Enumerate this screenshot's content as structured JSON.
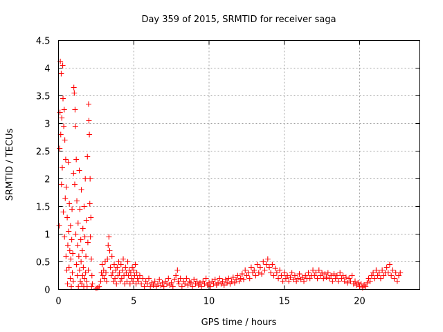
{
  "chart_data": {
    "type": "scatter",
    "title": "Day 359 of 2015, SRMTID for receiver saga",
    "xlabel": "GPS time / hours",
    "ylabel": "SRMTID / TECUs",
    "xlim": [
      0,
      24
    ],
    "ylim": [
      0,
      4.5
    ],
    "xticks": [
      0,
      5,
      10,
      15,
      20
    ],
    "xtick_labels": [
      "0",
      "5",
      "10",
      "15",
      "20"
    ],
    "yticks": [
      0,
      0.5,
      1,
      1.5,
      2,
      2.5,
      3,
      3.5,
      4,
      4.5
    ],
    "ytick_labels": [
      "0",
      "0.5",
      "1",
      "1.5",
      "2",
      "2.5",
      "3",
      "3.5",
      "4",
      "4.5"
    ],
    "grid": true,
    "marker": "+",
    "color": "#ff0000",
    "series": [
      {
        "name": "SRMTID",
        "points": [
          [
            0.05,
            1.15
          ],
          [
            0.08,
            2.55
          ],
          [
            0.1,
            3.2
          ],
          [
            0.12,
            4.12
          ],
          [
            0.15,
            2.8
          ],
          [
            0.18,
            3.9
          ],
          [
            0.2,
            1.9
          ],
          [
            0.22,
            3.1
          ],
          [
            0.25,
            2.2
          ],
          [
            0.28,
            4.05
          ],
          [
            0.3,
            3.45
          ],
          [
            0.32,
            1.4
          ],
          [
            0.35,
            2.95
          ],
          [
            0.38,
            3.25
          ],
          [
            0.4,
            0.95
          ],
          [
            0.42,
            2.7
          ],
          [
            0.45,
            1.65
          ],
          [
            0.48,
            2.35
          ],
          [
            0.5,
            0.6
          ],
          [
            0.52,
            1.85
          ],
          [
            0.55,
            0.35
          ],
          [
            0.58,
            1.3
          ],
          [
            0.6,
            0.1
          ],
          [
            0.62,
            0.8
          ],
          [
            0.65,
            2.3
          ],
          [
            0.68,
            1.05
          ],
          [
            0.7,
            0.4
          ],
          [
            0.72,
            1.55
          ],
          [
            0.75,
            0.7
          ],
          [
            0.78,
            0.2
          ],
          [
            0.8,
            1.15
          ],
          [
            0.82,
            0.55
          ],
          [
            0.85,
            0.05
          ],
          [
            0.88,
            0.9
          ],
          [
            0.9,
            1.45
          ],
          [
            0.92,
            0.3
          ],
          [
            0.95,
            0.65
          ],
          [
            0.98,
            0.15
          ],
          [
            1.0,
            2.1
          ],
          [
            1.02,
            3.65
          ],
          [
            1.05,
            3.55
          ],
          [
            1.08,
            1.9
          ],
          [
            1.1,
            3.25
          ],
          [
            1.12,
            2.95
          ],
          [
            1.15,
            1.0
          ],
          [
            1.18,
            2.35
          ],
          [
            1.2,
            0.45
          ],
          [
            1.22,
            1.6
          ],
          [
            1.25,
            0.25
          ],
          [
            1.28,
            0.8
          ],
          [
            1.3,
            1.2
          ],
          [
            1.32,
            0.05
          ],
          [
            1.35,
            0.6
          ],
          [
            1.38,
            2.15
          ],
          [
            1.4,
            0.35
          ],
          [
            1.42,
            1.45
          ],
          [
            1.45,
            0.15
          ],
          [
            1.48,
            0.9
          ],
          [
            1.5,
            0.5
          ],
          [
            1.52,
            1.8
          ],
          [
            1.55,
            0.1
          ],
          [
            1.58,
            0.7
          ],
          [
            1.6,
            0.25
          ],
          [
            1.62,
            1.1
          ],
          [
            1.65,
            0.4
          ],
          [
            1.68,
            0.05
          ],
          [
            1.7,
            1.5
          ],
          [
            1.72,
            0.2
          ],
          [
            1.75,
            0.95
          ],
          [
            1.78,
            2.0
          ],
          [
            1.8,
            0.3
          ],
          [
            1.82,
            0.6
          ],
          [
            1.85,
            1.25
          ],
          [
            1.88,
            0.15
          ],
          [
            1.9,
            0.05
          ],
          [
            1.92,
            2.4
          ],
          [
            1.95,
            0.85
          ],
          [
            1.98,
            0.35
          ],
          [
            2.0,
            3.35
          ],
          [
            2.02,
            3.05
          ],
          [
            2.05,
            2.8
          ],
          [
            2.08,
            1.55
          ],
          [
            2.1,
            2.0
          ],
          [
            2.12,
            0.95
          ],
          [
            2.15,
            1.3
          ],
          [
            2.18,
            0.55
          ],
          [
            2.2,
            0.05
          ],
          [
            2.22,
            0.25
          ],
          [
            2.25,
            0.1
          ],
          [
            2.5,
            0.02
          ],
          [
            2.6,
            0.03
          ],
          [
            2.7,
            0.05
          ],
          [
            2.8,
            0.15
          ],
          [
            2.85,
            0.3
          ],
          [
            2.9,
            0.45
          ],
          [
            2.95,
            0.25
          ],
          [
            3.0,
            0.35
          ],
          [
            3.05,
            0.2
          ],
          [
            3.1,
            0.5
          ],
          [
            3.15,
            0.3
          ],
          [
            3.2,
            0.15
          ],
          [
            3.25,
            0.55
          ],
          [
            3.3,
            0.8
          ],
          [
            3.35,
            0.95
          ],
          [
            3.4,
            0.7
          ],
          [
            3.45,
            0.4
          ],
          [
            3.5,
            0.25
          ],
          [
            3.55,
            0.6
          ],
          [
            3.6,
            0.3
          ],
          [
            3.65,
            0.15
          ],
          [
            3.7,
            0.45
          ],
          [
            3.75,
            0.2
          ],
          [
            3.8,
            0.35
          ],
          [
            3.85,
            0.1
          ],
          [
            3.9,
            0.4
          ],
          [
            3.95,
            0.25
          ],
          [
            4.0,
            0.5
          ],
          [
            4.05,
            0.3
          ],
          [
            4.1,
            0.15
          ],
          [
            4.15,
            0.45
          ],
          [
            4.2,
            0.2
          ],
          [
            4.25,
            0.35
          ],
          [
            4.3,
            0.55
          ],
          [
            4.35,
            0.25
          ],
          [
            4.4,
            0.1
          ],
          [
            4.45,
            0.4
          ],
          [
            4.5,
            0.3
          ],
          [
            4.55,
            0.15
          ],
          [
            4.6,
            0.5
          ],
          [
            4.65,
            0.25
          ],
          [
            4.7,
            0.35
          ],
          [
            4.75,
            0.1
          ],
          [
            4.8,
            0.3
          ],
          [
            4.85,
            0.2
          ],
          [
            4.9,
            0.4
          ],
          [
            4.95,
            0.15
          ],
          [
            5.0,
            0.35
          ],
          [
            5.05,
            0.25
          ],
          [
            5.1,
            0.45
          ],
          [
            5.15,
            0.1
          ],
          [
            5.2,
            0.3
          ],
          [
            5.25,
            0.2
          ],
          [
            5.3,
            0.15
          ],
          [
            5.4,
            0.25
          ],
          [
            5.5,
            0.1
          ],
          [
            5.6,
            0.2
          ],
          [
            5.7,
            0.05
          ],
          [
            5.8,
            0.15
          ],
          [
            5.9,
            0.1
          ],
          [
            6.0,
            0.2
          ],
          [
            6.1,
            0.05
          ],
          [
            6.2,
            0.12
          ],
          [
            6.3,
            0.08
          ],
          [
            6.4,
            0.15
          ],
          [
            6.5,
            0.05
          ],
          [
            6.6,
            0.1
          ],
          [
            6.7,
            0.18
          ],
          [
            6.8,
            0.07
          ],
          [
            6.9,
            0.12
          ],
          [
            7.0,
            0.05
          ],
          [
            7.1,
            0.15
          ],
          [
            7.2,
            0.1
          ],
          [
            7.3,
            0.2
          ],
          [
            7.4,
            0.08
          ],
          [
            7.5,
            0.12
          ],
          [
            7.6,
            0.05
          ],
          [
            7.7,
            0.18
          ],
          [
            7.8,
            0.25
          ],
          [
            7.9,
            0.35
          ],
          [
            7.95,
            0.15
          ],
          [
            8.0,
            0.1
          ],
          [
            8.1,
            0.2
          ],
          [
            8.2,
            0.05
          ],
          [
            8.3,
            0.15
          ],
          [
            8.4,
            0.1
          ],
          [
            8.5,
            0.2
          ],
          [
            8.6,
            0.08
          ],
          [
            8.7,
            0.15
          ],
          [
            8.8,
            0.12
          ],
          [
            8.9,
            0.05
          ],
          [
            9.0,
            0.18
          ],
          [
            9.1,
            0.1
          ],
          [
            9.2,
            0.15
          ],
          [
            9.3,
            0.08
          ],
          [
            9.4,
            0.12
          ],
          [
            9.5,
            0.05
          ],
          [
            9.6,
            0.15
          ],
          [
            9.7,
            0.1
          ],
          [
            9.8,
            0.2
          ],
          [
            9.9,
            0.08
          ],
          [
            10.0,
            0.12
          ],
          [
            10.1,
            0.05
          ],
          [
            10.2,
            0.15
          ],
          [
            10.3,
            0.1
          ],
          [
            10.4,
            0.18
          ],
          [
            10.5,
            0.08
          ],
          [
            10.6,
            0.12
          ],
          [
            10.7,
            0.2
          ],
          [
            10.8,
            0.1
          ],
          [
            10.9,
            0.15
          ],
          [
            11.0,
            0.08
          ],
          [
            11.1,
            0.18
          ],
          [
            11.2,
            0.12
          ],
          [
            11.3,
            0.2
          ],
          [
            11.4,
            0.1
          ],
          [
            11.5,
            0.15
          ],
          [
            11.6,
            0.22
          ],
          [
            11.7,
            0.12
          ],
          [
            11.8,
            0.18
          ],
          [
            11.9,
            0.25
          ],
          [
            12.0,
            0.15
          ],
          [
            12.1,
            0.2
          ],
          [
            12.2,
            0.28
          ],
          [
            12.3,
            0.18
          ],
          [
            12.4,
            0.35
          ],
          [
            12.5,
            0.25
          ],
          [
            12.6,
            0.3
          ],
          [
            12.7,
            0.2
          ],
          [
            12.8,
            0.4
          ],
          [
            12.9,
            0.3
          ],
          [
            13.0,
            0.35
          ],
          [
            13.1,
            0.25
          ],
          [
            13.2,
            0.45
          ],
          [
            13.3,
            0.3
          ],
          [
            13.4,
            0.4
          ],
          [
            13.5,
            0.28
          ],
          [
            13.6,
            0.5
          ],
          [
            13.7,
            0.35
          ],
          [
            13.8,
            0.45
          ],
          [
            13.9,
            0.55
          ],
          [
            14.0,
            0.4
          ],
          [
            14.1,
            0.3
          ],
          [
            14.2,
            0.45
          ],
          [
            14.3,
            0.25
          ],
          [
            14.4,
            0.38
          ],
          [
            14.5,
            0.3
          ],
          [
            14.6,
            0.2
          ],
          [
            14.7,
            0.35
          ],
          [
            14.8,
            0.25
          ],
          [
            14.9,
            0.15
          ],
          [
            15.0,
            0.3
          ],
          [
            15.1,
            0.2
          ],
          [
            15.2,
            0.25
          ],
          [
            15.3,
            0.15
          ],
          [
            15.4,
            0.22
          ],
          [
            15.5,
            0.3
          ],
          [
            15.6,
            0.18
          ],
          [
            15.7,
            0.25
          ],
          [
            15.8,
            0.15
          ],
          [
            15.9,
            0.2
          ],
          [
            16.0,
            0.28
          ],
          [
            16.1,
            0.18
          ],
          [
            16.2,
            0.22
          ],
          [
            16.3,
            0.15
          ],
          [
            16.4,
            0.25
          ],
          [
            16.5,
            0.2
          ],
          [
            16.6,
            0.3
          ],
          [
            16.7,
            0.2
          ],
          [
            16.8,
            0.25
          ],
          [
            16.9,
            0.35
          ],
          [
            17.0,
            0.25
          ],
          [
            17.1,
            0.3
          ],
          [
            17.2,
            0.2
          ],
          [
            17.3,
            0.35
          ],
          [
            17.4,
            0.25
          ],
          [
            17.5,
            0.3
          ],
          [
            17.6,
            0.2
          ],
          [
            17.7,
            0.28
          ],
          [
            17.8,
            0.22
          ],
          [
            17.9,
            0.3
          ],
          [
            18.0,
            0.2
          ],
          [
            18.1,
            0.25
          ],
          [
            18.2,
            0.15
          ],
          [
            18.3,
            0.28
          ],
          [
            18.4,
            0.2
          ],
          [
            18.5,
            0.25
          ],
          [
            18.6,
            0.15
          ],
          [
            18.7,
            0.3
          ],
          [
            18.8,
            0.2
          ],
          [
            18.9,
            0.25
          ],
          [
            19.0,
            0.15
          ],
          [
            19.1,
            0.22
          ],
          [
            19.2,
            0.12
          ],
          [
            19.3,
            0.2
          ],
          [
            19.4,
            0.15
          ],
          [
            19.5,
            0.25
          ],
          [
            19.6,
            0.1
          ],
          [
            19.7,
            0.15
          ],
          [
            19.8,
            0.08
          ],
          [
            19.9,
            0.12
          ],
          [
            20.0,
            0.05
          ],
          [
            20.1,
            0.1
          ],
          [
            20.2,
            0.03
          ],
          [
            20.3,
            0.08
          ],
          [
            20.4,
            0.05
          ],
          [
            20.5,
            0.12
          ],
          [
            20.6,
            0.2
          ],
          [
            20.7,
            0.15
          ],
          [
            20.8,
            0.25
          ],
          [
            20.9,
            0.3
          ],
          [
            21.0,
            0.2
          ],
          [
            21.1,
            0.35
          ],
          [
            21.2,
            0.25
          ],
          [
            21.3,
            0.3
          ],
          [
            21.4,
            0.2
          ],
          [
            21.5,
            0.35
          ],
          [
            21.6,
            0.25
          ],
          [
            21.7,
            0.3
          ],
          [
            21.8,
            0.4
          ],
          [
            21.9,
            0.3
          ],
          [
            22.0,
            0.45
          ],
          [
            22.1,
            0.25
          ],
          [
            22.2,
            0.35
          ],
          [
            22.3,
            0.2
          ],
          [
            22.4,
            0.3
          ],
          [
            22.5,
            0.15
          ],
          [
            22.6,
            0.25
          ],
          [
            22.7,
            0.3
          ]
        ]
      }
    ]
  }
}
